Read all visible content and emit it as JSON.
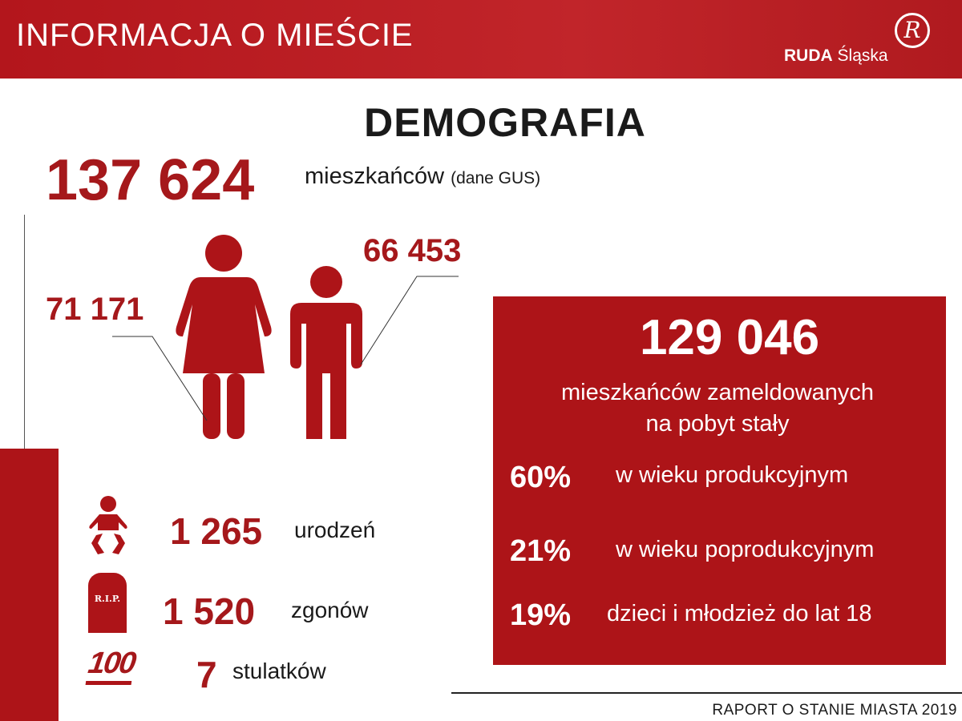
{
  "header": {
    "title": "INFORMACJA O MIEŚCIE",
    "logo_bold": "RUDA",
    "logo_rest": "Śląska",
    "logo_mark": "R"
  },
  "heading": "DEMOGRAFIA",
  "population": {
    "total": "137 624",
    "label": "mieszkańców",
    "source": "(dane GUS)",
    "women": "71 171",
    "men": "66 453"
  },
  "stats": [
    {
      "icon": "baby-icon",
      "value": "1 265",
      "label": "urodzeń"
    },
    {
      "icon": "tombstone-icon",
      "value": "1 520",
      "label": "zgonów",
      "icon_text": "R.I.P."
    },
    {
      "icon": "hundred-icon",
      "value": "7",
      "label": "stulatków",
      "icon_text": "100"
    }
  ],
  "registered": {
    "value": "129 046",
    "label_line1": "mieszkańców zameldowanych",
    "label_line2": "na pobyt stały",
    "groups": [
      {
        "percent": "60%",
        "label": "w wieku produkcyjnym"
      },
      {
        "percent": "21%",
        "label": "w wieku poprodukcyjnym"
      },
      {
        "percent": "19%",
        "label": "dzieci i młodzież do lat 18"
      }
    ]
  },
  "footer": "RAPORT O STANIE MIASTA 2019",
  "colors": {
    "accent": "#ad1418",
    "header": "#b91e23"
  }
}
